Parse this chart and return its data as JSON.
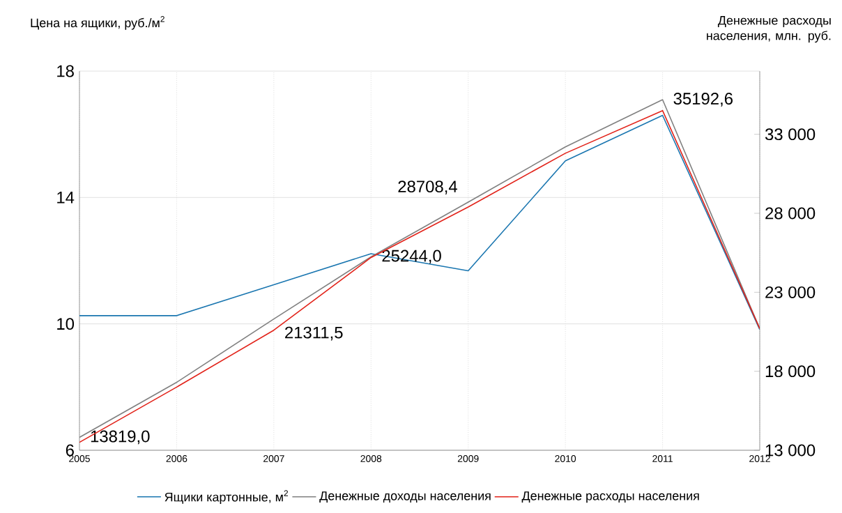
{
  "chart_data": {
    "type": "line",
    "ylabel": "Цена на ящики, руб./м$^{2}$",
    "y2label": "Денежные расходы населения, млн. руб.",
    "x": [
      2005,
      2006,
      2007,
      2008,
      2009,
      2010,
      2011,
      2012
    ],
    "xlim": [
      2005,
      2012
    ],
    "xticks": [
      2005,
      2006,
      2007,
      2008,
      2009,
      2010,
      2011,
      2012
    ],
    "ylim": [
      6,
      18
    ],
    "yticks": [
      6,
      10,
      14,
      18
    ],
    "y2lim": [
      13000,
      37000
    ],
    "y2ticks": [
      {
        "value": 13000,
        "label": "13 000"
      },
      {
        "value": 18000,
        "label": "18 000"
      },
      {
        "value": 23000,
        "label": "23 000"
      },
      {
        "value": 28000,
        "label": "28 000"
      },
      {
        "value": 33000,
        "label": "33 000"
      }
    ],
    "series": [
      {
        "name": "Ящики картонные, м$^{2}$",
        "color": "#1a76b0",
        "values": [
          10.26,
          10.26,
          11.24,
          12.22,
          11.68,
          15.16,
          16.6,
          9.82
        ]
      },
      {
        "name": "Денежные доходы населения",
        "color": "#808080",
        "axis": "y2",
        "values": [
          13819.0,
          17300,
          21311.5,
          25244.0,
          28708.4,
          32200,
          35192.6,
          20700
        ],
        "value_labels": [
          "13819,0",
          null,
          "21311,5",
          "25244,0",
          "28708,4",
          null,
          "35192,6",
          null
        ]
      },
      {
        "name": "Денежные расходы населения",
        "color": "#e2231a",
        "axis": "y2",
        "values": [
          13500,
          17000,
          20600,
          25200,
          28400,
          31800,
          34500,
          20700
        ]
      }
    ],
    "grid": true,
    "legend": "bottom",
    "marker": "none",
    "line_style": "solid"
  }
}
